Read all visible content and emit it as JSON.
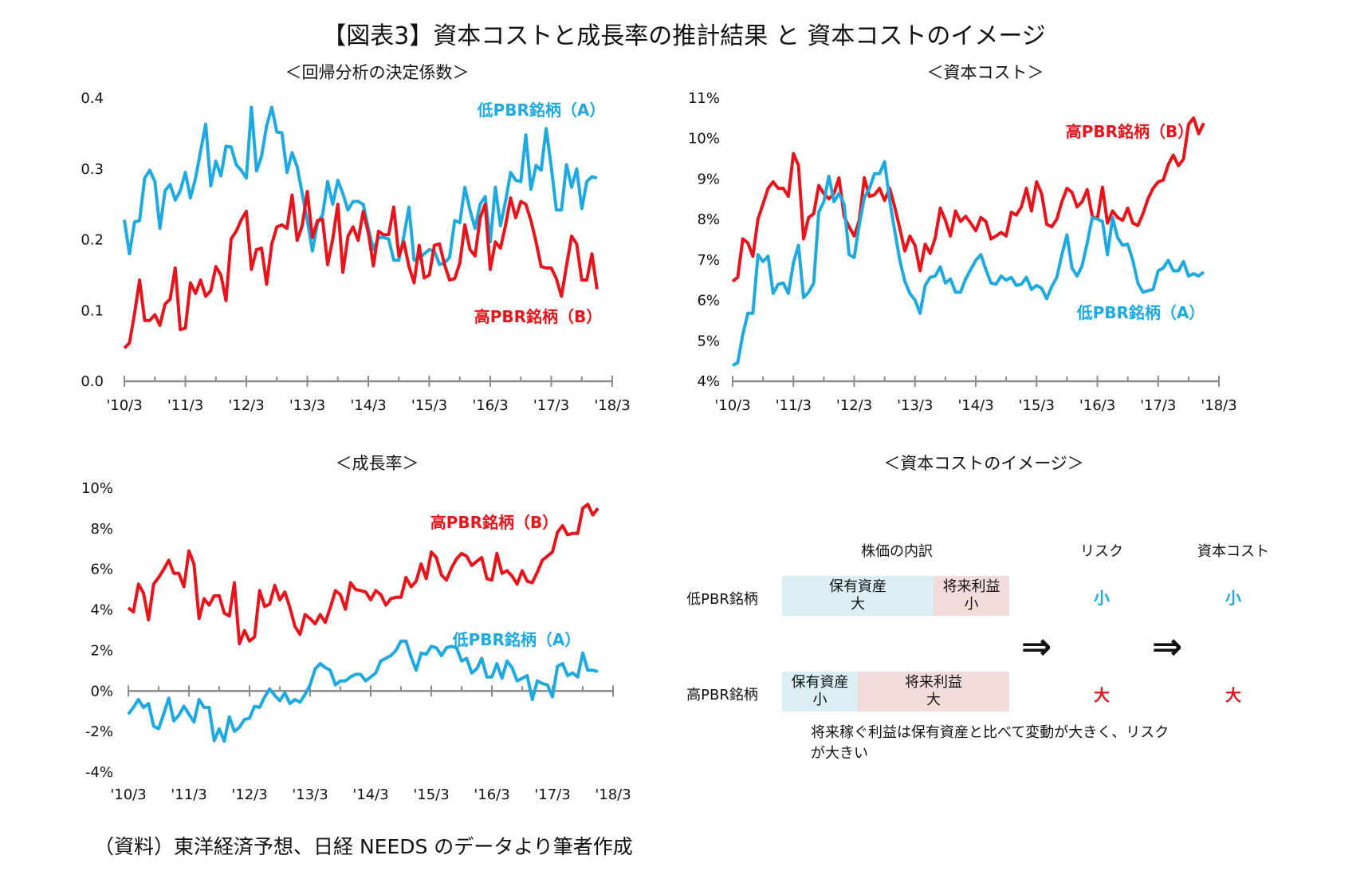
{
  "title": "【図表3】資本コストと成長率の推計結果 と 資本コストのイメージ",
  "source": "（資料）東洋経済予想、日経 NEEDS のデータより筆者作成",
  "colors": {
    "low_pbr": "#1ea9e1",
    "high_pbr": "#e8141b",
    "axis": "#8c8c8c",
    "box_assets": "#dbeef4",
    "box_earnings": "#f2dcdb"
  },
  "chart_data": [
    {
      "type": "line",
      "title": "＜回帰分析の決定係数＞",
      "x_tick_labels": [
        "'10/3",
        "'11/3",
        "'12/3",
        "'13/3",
        "'14/3",
        "'15/3",
        "'16/3",
        "'17/3",
        "'18/3"
      ],
      "y_tick_labels": [
        "0.0",
        "0.1",
        "0.2",
        "0.3",
        "0.4"
      ],
      "ylim": [
        0,
        0.4
      ],
      "xlim": [
        "2010/3",
        "2018/3"
      ],
      "grid": false,
      "series": [
        {
          "name": "低PBR銘柄（A）",
          "color": "#1ea9e1",
          "values": [
            0.228,
            0.18,
            0.225,
            0.227,
            0.287,
            0.298,
            0.282,
            0.216,
            0.269,
            0.278,
            0.256,
            0.269,
            0.295,
            0.259,
            0.287,
            0.325,
            0.363,
            0.276,
            0.311,
            0.29,
            0.332,
            0.331,
            0.306,
            0.298,
            0.287,
            0.387,
            0.297,
            0.318,
            0.361,
            0.387,
            0.352,
            0.351,
            0.295,
            0.323,
            0.303,
            0.265,
            0.227,
            0.184,
            0.224,
            0.235,
            0.282,
            0.25,
            0.284,
            0.265,
            0.242,
            0.254,
            0.254,
            0.25,
            0.216,
            0.186,
            0.203,
            0.203,
            0.201,
            0.171,
            0.171,
            0.205,
            0.246,
            0.171,
            0.173,
            0.18,
            0.186,
            0.184,
            0.165,
            0.167,
            0.175,
            0.227,
            0.224,
            0.274,
            0.242,
            0.216,
            0.25,
            0.261,
            0.197,
            0.274,
            0.22,
            0.254,
            0.295,
            0.284,
            0.282,
            0.348,
            0.271,
            0.305,
            0.298,
            0.357,
            0.303,
            0.242,
            0.242,
            0.306,
            0.274,
            0.3,
            0.244,
            0.282,
            0.289,
            0.287
          ]
        },
        {
          "name": "高PBR銘柄（B）",
          "color": "#e8141b",
          "values": [
            0.047,
            0.054,
            0.096,
            0.143,
            0.086,
            0.086,
            0.094,
            0.079,
            0.109,
            0.116,
            0.16,
            0.073,
            0.075,
            0.139,
            0.124,
            0.143,
            0.12,
            0.128,
            0.162,
            0.15,
            0.114,
            0.201,
            0.212,
            0.228,
            0.24,
            0.158,
            0.186,
            0.188,
            0.137,
            0.194,
            0.218,
            0.221,
            0.216,
            0.263,
            0.199,
            0.22,
            0.268,
            0.203,
            0.227,
            0.229,
            0.165,
            0.201,
            0.25,
            0.154,
            0.205,
            0.218,
            0.199,
            0.24,
            0.21,
            0.163,
            0.212,
            0.207,
            0.207,
            0.246,
            0.177,
            0.197,
            0.162,
            0.139,
            0.192,
            0.146,
            0.15,
            0.192,
            0.194,
            0.165,
            0.143,
            0.145,
            0.167,
            0.221,
            0.186,
            0.177,
            0.231,
            0.25,
            0.158,
            0.197,
            0.188,
            0.22,
            0.259,
            0.231,
            0.254,
            0.25,
            0.227,
            0.197,
            0.162,
            0.16,
            0.16,
            0.145,
            0.12,
            0.163,
            0.205,
            0.194,
            0.143,
            0.143,
            0.18,
            0.13
          ]
        }
      ]
    },
    {
      "type": "line",
      "title": "＜資本コスト＞",
      "x_tick_labels": [
        "'10/3",
        "'11/3",
        "'12/3",
        "'13/3",
        "'14/3",
        "'15/3",
        "'16/3",
        "'17/3",
        "'18/3"
      ],
      "y_tick_labels": [
        "4%",
        "5%",
        "6%",
        "7%",
        "8%",
        "9%",
        "10%",
        "11%"
      ],
      "ylim": [
        4,
        11
      ],
      "xlim": [
        "2010/3",
        "2018/3"
      ],
      "grid": false,
      "series": [
        {
          "name": "高PBR銘柄（B）",
          "color": "#e8141b",
          "values": [
            6.47,
            6.57,
            7.52,
            7.42,
            7.09,
            8.01,
            8.38,
            8.77,
            8.93,
            8.77,
            8.77,
            8.57,
            9.63,
            9.33,
            7.52,
            8.05,
            8.14,
            8.84,
            8.64,
            8.51,
            8.64,
            9.03,
            8.08,
            7.82,
            7.59,
            7.98,
            9.03,
            8.57,
            8.61,
            8.77,
            8.47,
            8.77,
            8.31,
            7.78,
            7.22,
            7.59,
            7.36,
            6.73,
            7.39,
            7.16,
            7.55,
            8.28,
            7.98,
            7.59,
            8.21,
            7.95,
            8.08,
            7.91,
            7.72,
            8.05,
            7.95,
            7.52,
            7.59,
            7.68,
            7.59,
            8.18,
            8.11,
            8.31,
            8.77,
            8.21,
            8.93,
            8.64,
            7.88,
            7.82,
            8.01,
            8.44,
            8.77,
            8.67,
            8.31,
            8.44,
            8.74,
            8.08,
            8.01,
            8.8,
            7.91,
            8.21,
            8.05,
            7.98,
            8.28,
            7.91,
            7.85,
            8.14,
            8.51,
            8.77,
            8.93,
            8.97,
            9.36,
            9.59,
            9.33,
            9.49,
            10.35,
            10.51,
            10.12,
            10.38
          ]
        },
        {
          "name": "低PBR銘柄（A）",
          "color": "#1ea9e1",
          "values": [
            4.39,
            4.46,
            5.15,
            5.68,
            5.68,
            7.13,
            6.96,
            7.09,
            6.17,
            6.4,
            6.43,
            6.17,
            6.93,
            7.36,
            6.07,
            6.2,
            6.43,
            8.18,
            8.44,
            9.07,
            8.44,
            8.64,
            8.38,
            7.13,
            7.06,
            7.88,
            8.54,
            8.77,
            9.13,
            9.13,
            9.43,
            8.47,
            7.72,
            6.99,
            6.47,
            6.17,
            6.01,
            5.68,
            6.37,
            6.57,
            6.6,
            6.83,
            6.43,
            6.53,
            6.2,
            6.2,
            6.53,
            6.76,
            6.99,
            7.13,
            6.76,
            6.43,
            6.4,
            6.6,
            6.5,
            6.57,
            6.37,
            6.4,
            6.57,
            6.27,
            6.37,
            6.3,
            6.04,
            6.34,
            6.57,
            7.13,
            7.62,
            6.8,
            6.6,
            6.86,
            7.42,
            8.05,
            8.01,
            7.95,
            7.13,
            8.05,
            7.55,
            7.36,
            7.39,
            6.99,
            6.43,
            6.2,
            6.24,
            6.27,
            6.73,
            6.8,
            6.99,
            6.73,
            6.73,
            6.96,
            6.6,
            6.66,
            6.6,
            6.7
          ]
        }
      ]
    },
    {
      "type": "line",
      "title": "＜成長率＞",
      "x_tick_labels": [
        "'10/3",
        "'11/3",
        "'12/3",
        "'13/3",
        "'14/3",
        "'15/3",
        "'16/3",
        "'17/3",
        "'18/3"
      ],
      "y_tick_labels": [
        "-4%",
        "-2%",
        "0%",
        "2%",
        "4%",
        "6%",
        "8%",
        "10%"
      ],
      "ylim": [
        -4,
        10
      ],
      "xlim": [
        "2010/3",
        "2018/3"
      ],
      "grid": false,
      "series": [
        {
          "name": "高PBR銘柄（B）",
          "color": "#e8141b",
          "values": [
            4.1,
            3.9,
            5.27,
            4.82,
            3.51,
            5.27,
            5.6,
            5.99,
            6.45,
            5.8,
            5.8,
            5.14,
            6.91,
            6.26,
            3.57,
            4.55,
            4.23,
            4.69,
            4.69,
            3.84,
            3.7,
            5.34,
            2.33,
            2.98,
            2.46,
            2.66,
            4.95,
            4.16,
            4.29,
            5.21,
            4.49,
            4.88,
            4.1,
            3.18,
            2.79,
            3.77,
            3.57,
            3.31,
            3.77,
            3.38,
            4.1,
            4.95,
            4.75,
            4.03,
            5.34,
            5.01,
            4.95,
            4.88,
            4.49,
            4.95,
            4.75,
            4.23,
            4.55,
            4.62,
            4.62,
            5.6,
            5.14,
            5.41,
            6.26,
            5.54,
            6.85,
            6.58,
            5.73,
            5.47,
            6.06,
            6.52,
            6.78,
            6.65,
            6.19,
            6.39,
            6.58,
            5.54,
            5.47,
            6.78,
            5.8,
            5.93,
            5.67,
            5.27,
            5.93,
            5.41,
            5.34,
            5.86,
            6.45,
            6.65,
            6.85,
            7.83,
            8.15,
            7.7,
            7.77,
            7.77,
            9.01,
            9.2,
            8.68,
            9.01
          ]
        },
        {
          "name": "低PBR銘柄（A）",
          "color": "#1ea9e1",
          "values": [
            -1.14,
            -0.81,
            -0.42,
            -0.81,
            -0.62,
            -1.73,
            -1.86,
            -1.14,
            -0.35,
            -1.47,
            -1.2,
            -0.75,
            -1.14,
            -1.53,
            -0.42,
            -0.81,
            -0.81,
            -2.45,
            -1.86,
            -2.47,
            -1.27,
            -1.99,
            -1.79,
            -1.4,
            -1.34,
            -0.75,
            -0.81,
            -0.29,
            0.1,
            -0.22,
            -0.48,
            -0.09,
            -0.62,
            -0.42,
            -0.55,
            -0.16,
            0.3,
            1.09,
            1.35,
            1.15,
            1.02,
            0.3,
            0.5,
            0.5,
            0.69,
            0.82,
            0.82,
            0.5,
            0.69,
            0.89,
            1.48,
            1.61,
            1.74,
            2.0,
            2.46,
            2.46,
            1.68,
            1.02,
            1.87,
            1.81,
            2.2,
            2.13,
            1.74,
            2.13,
            2.2,
            2.13,
            1.48,
            1.61,
            0.89,
            1.09,
            1.61,
            0.69,
            0.69,
            1.35,
            0.63,
            1.48,
            1.15,
            0.5,
            0.63,
            0.76,
            -0.42,
            0.5,
            0.37,
            0.3,
            -0.29,
            1.22,
            1.35,
            0.76,
            0.89,
            0.69,
            1.87,
            1.02,
            1.02,
            0.96
          ]
        }
      ]
    }
  ],
  "diagram": {
    "title": "＜資本コストのイメージ＞",
    "col_breakdown": "株価の内訳",
    "col_risk": "リスク",
    "col_cost": "資本コスト",
    "rows": [
      {
        "label": "低PBR銘柄",
        "assets": "保有資産",
        "assets_size": "大",
        "earnings": "将来利益",
        "earnings_size": "小",
        "risk": "小",
        "cost": "小"
      },
      {
        "label": "高PBR銘柄",
        "assets": "保有資産",
        "assets_size": "小",
        "earnings": "将来利益",
        "earnings_size": "大",
        "risk": "大",
        "cost": "大"
      }
    ],
    "arrow": "⇒",
    "note": "将来稼ぐ利益は保有資産と比べて変動が大きく、リスクが大きい"
  }
}
